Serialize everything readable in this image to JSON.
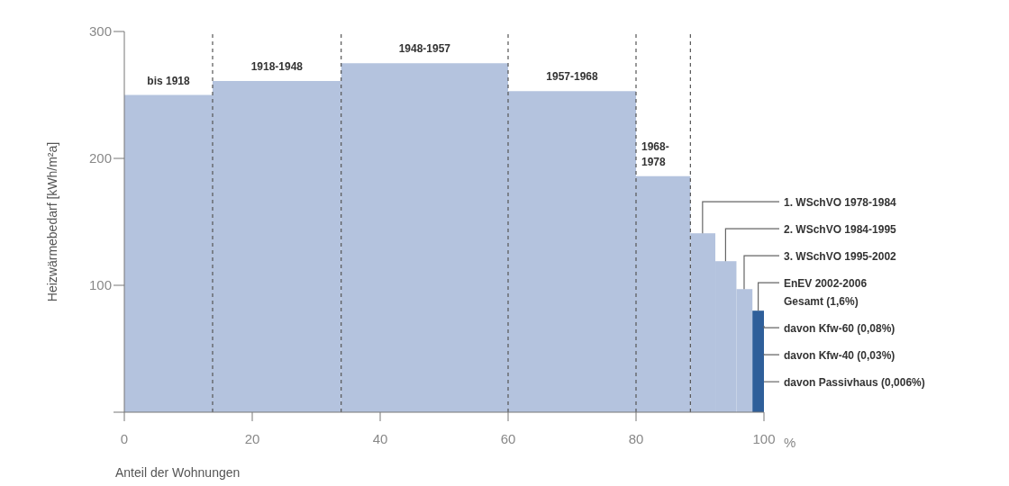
{
  "chart_data": {
    "type": "histogram",
    "bins": [
      0,
      13.8,
      33.9,
      60,
      80,
      88.5,
      92.4,
      95.7,
      98.2,
      100
    ],
    "values": [
      250,
      261,
      275,
      253,
      186,
      141,
      119,
      97,
      80
    ],
    "colors": [
      "#b4c3de",
      "#b4c3de",
      "#b4c3de",
      "#b4c3de",
      "#b4c3de",
      "#b4c3de",
      "#b4c3de",
      "#b4c3de",
      "#2f5f9a"
    ],
    "xlabel": "Anteil der Wohnungen",
    "ylabel": "Heizwärmebedarf [kWh/m²a]",
    "xlim": [
      0,
      100
    ],
    "xticks": [
      0,
      20,
      40,
      60,
      80,
      100
    ],
    "ylim": [
      0,
      300
    ],
    "yticks": [
      {
        "value": 0,
        "label": null
      },
      100,
      200,
      300
    ],
    "ref_lines": [
      {
        "axis": "x",
        "value": 13.8,
        "color": "#555555",
        "line_style": "dashed"
      },
      {
        "axis": "x",
        "value": 33.9,
        "color": "#555555",
        "line_style": "dashed"
      },
      {
        "axis": "x",
        "value": 60,
        "color": "#555555",
        "line_style": "dashed"
      },
      {
        "axis": "x",
        "value": 80,
        "color": "#555555",
        "line_style": "dashed"
      },
      {
        "axis": "x",
        "value": 88.5,
        "color": "#555555",
        "line_style": "dashed"
      }
    ],
    "annotations": [
      {
        "text": "bis 1918",
        "x": 6.9,
        "y": 250
      },
      {
        "text": "1918-1948",
        "x": 23.85,
        "y": 261
      },
      {
        "text": "1948-1957",
        "x": 46.95,
        "y": 275
      },
      {
        "text": "1957-1968",
        "x": 70,
        "y": 253
      },
      {
        "text": "1968-1978",
        "x": 84.25,
        "y": 186
      },
      {
        "text": "1. WSchVO 1978-1984",
        "x": 90.4,
        "y": 141
      },
      {
        "text": "2. WSchVO 1984-1995",
        "x": 94,
        "y": 119
      },
      {
        "text": "3. WSchVO 1995-2002",
        "x": 96.9,
        "y": 97
      },
      {
        "text": "EnEV 2002-2006\nGesamt (1,6%)",
        "x": 99.1,
        "y": 80
      },
      {
        "text": "davon Kfw-60 (0,08%)",
        "x": 100,
        "y": 68
      },
      {
        "text": "davon Kfw-40 (0,03%)",
        "x": 100,
        "y": 46
      },
      {
        "text": "davon Passivhaus (0,006%)",
        "x": 100,
        "y": 24
      },
      "%"
    ]
  }
}
